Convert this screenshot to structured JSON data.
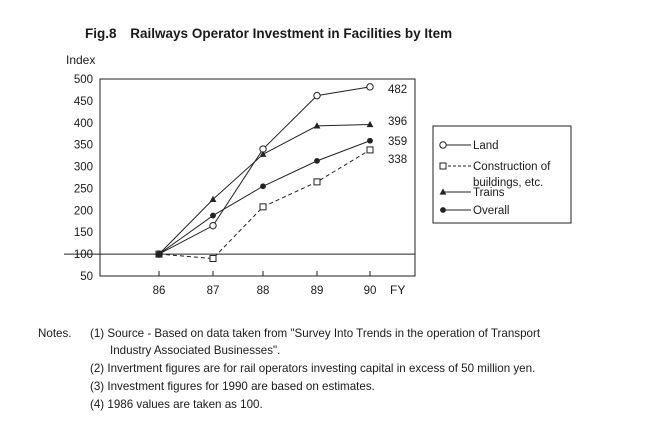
{
  "figure": {
    "number": "Fig.8",
    "title": "Railways Operator Investment in Facilities by Item"
  },
  "chart_data": {
    "type": "line",
    "title": "Railways Operator Investment in Facilities by Item",
    "ylabel": "Index",
    "xlabel": "FY",
    "x": [
      "86",
      "87",
      "88",
      "89",
      "90"
    ],
    "ylim": [
      50,
      500
    ],
    "yticks": [
      50,
      100,
      150,
      200,
      250,
      300,
      350,
      400,
      450,
      500
    ],
    "reference_line": 100,
    "grid": false,
    "legend_position": "right",
    "series": [
      {
        "name": "Land",
        "marker": "open-circle",
        "line": "solid",
        "values": [
          100,
          165,
          340,
          462,
          482
        ],
        "end_label": "482"
      },
      {
        "name": "Construction of buildings, etc.",
        "marker": "open-square",
        "line": "dashed",
        "values": [
          100,
          90,
          208,
          265,
          338
        ],
        "end_label": "338"
      },
      {
        "name": "Trains",
        "marker": "filled-triangle",
        "line": "solid",
        "values": [
          100,
          225,
          328,
          393,
          396
        ],
        "end_label": "396"
      },
      {
        "name": "Overall",
        "marker": "filled-circle",
        "line": "solid",
        "values": [
          100,
          188,
          255,
          313,
          359
        ],
        "end_label": "359"
      }
    ]
  },
  "legend": {
    "items": [
      {
        "lines": [
          "Land"
        ]
      },
      {
        "lines": [
          "Construction of",
          "buildings, etc."
        ]
      },
      {
        "lines": [
          "Trains"
        ]
      },
      {
        "lines": [
          "Overall"
        ]
      }
    ]
  },
  "notes": {
    "label": "Notes.",
    "items": [
      {
        "lines": [
          "(1) Source - Based on data taken from \"Survey Into Trends in the operation of Transport",
          "Industry Associated Businesses\"."
        ]
      },
      {
        "lines": [
          "(2) Invertment figures are for rail operators investing capital in excess of 50 million yen."
        ]
      },
      {
        "lines": [
          "(3) Investment figures for 1990 are based on estimates."
        ]
      },
      {
        "lines": [
          "(4) 1986 values are taken as 100."
        ]
      }
    ]
  }
}
